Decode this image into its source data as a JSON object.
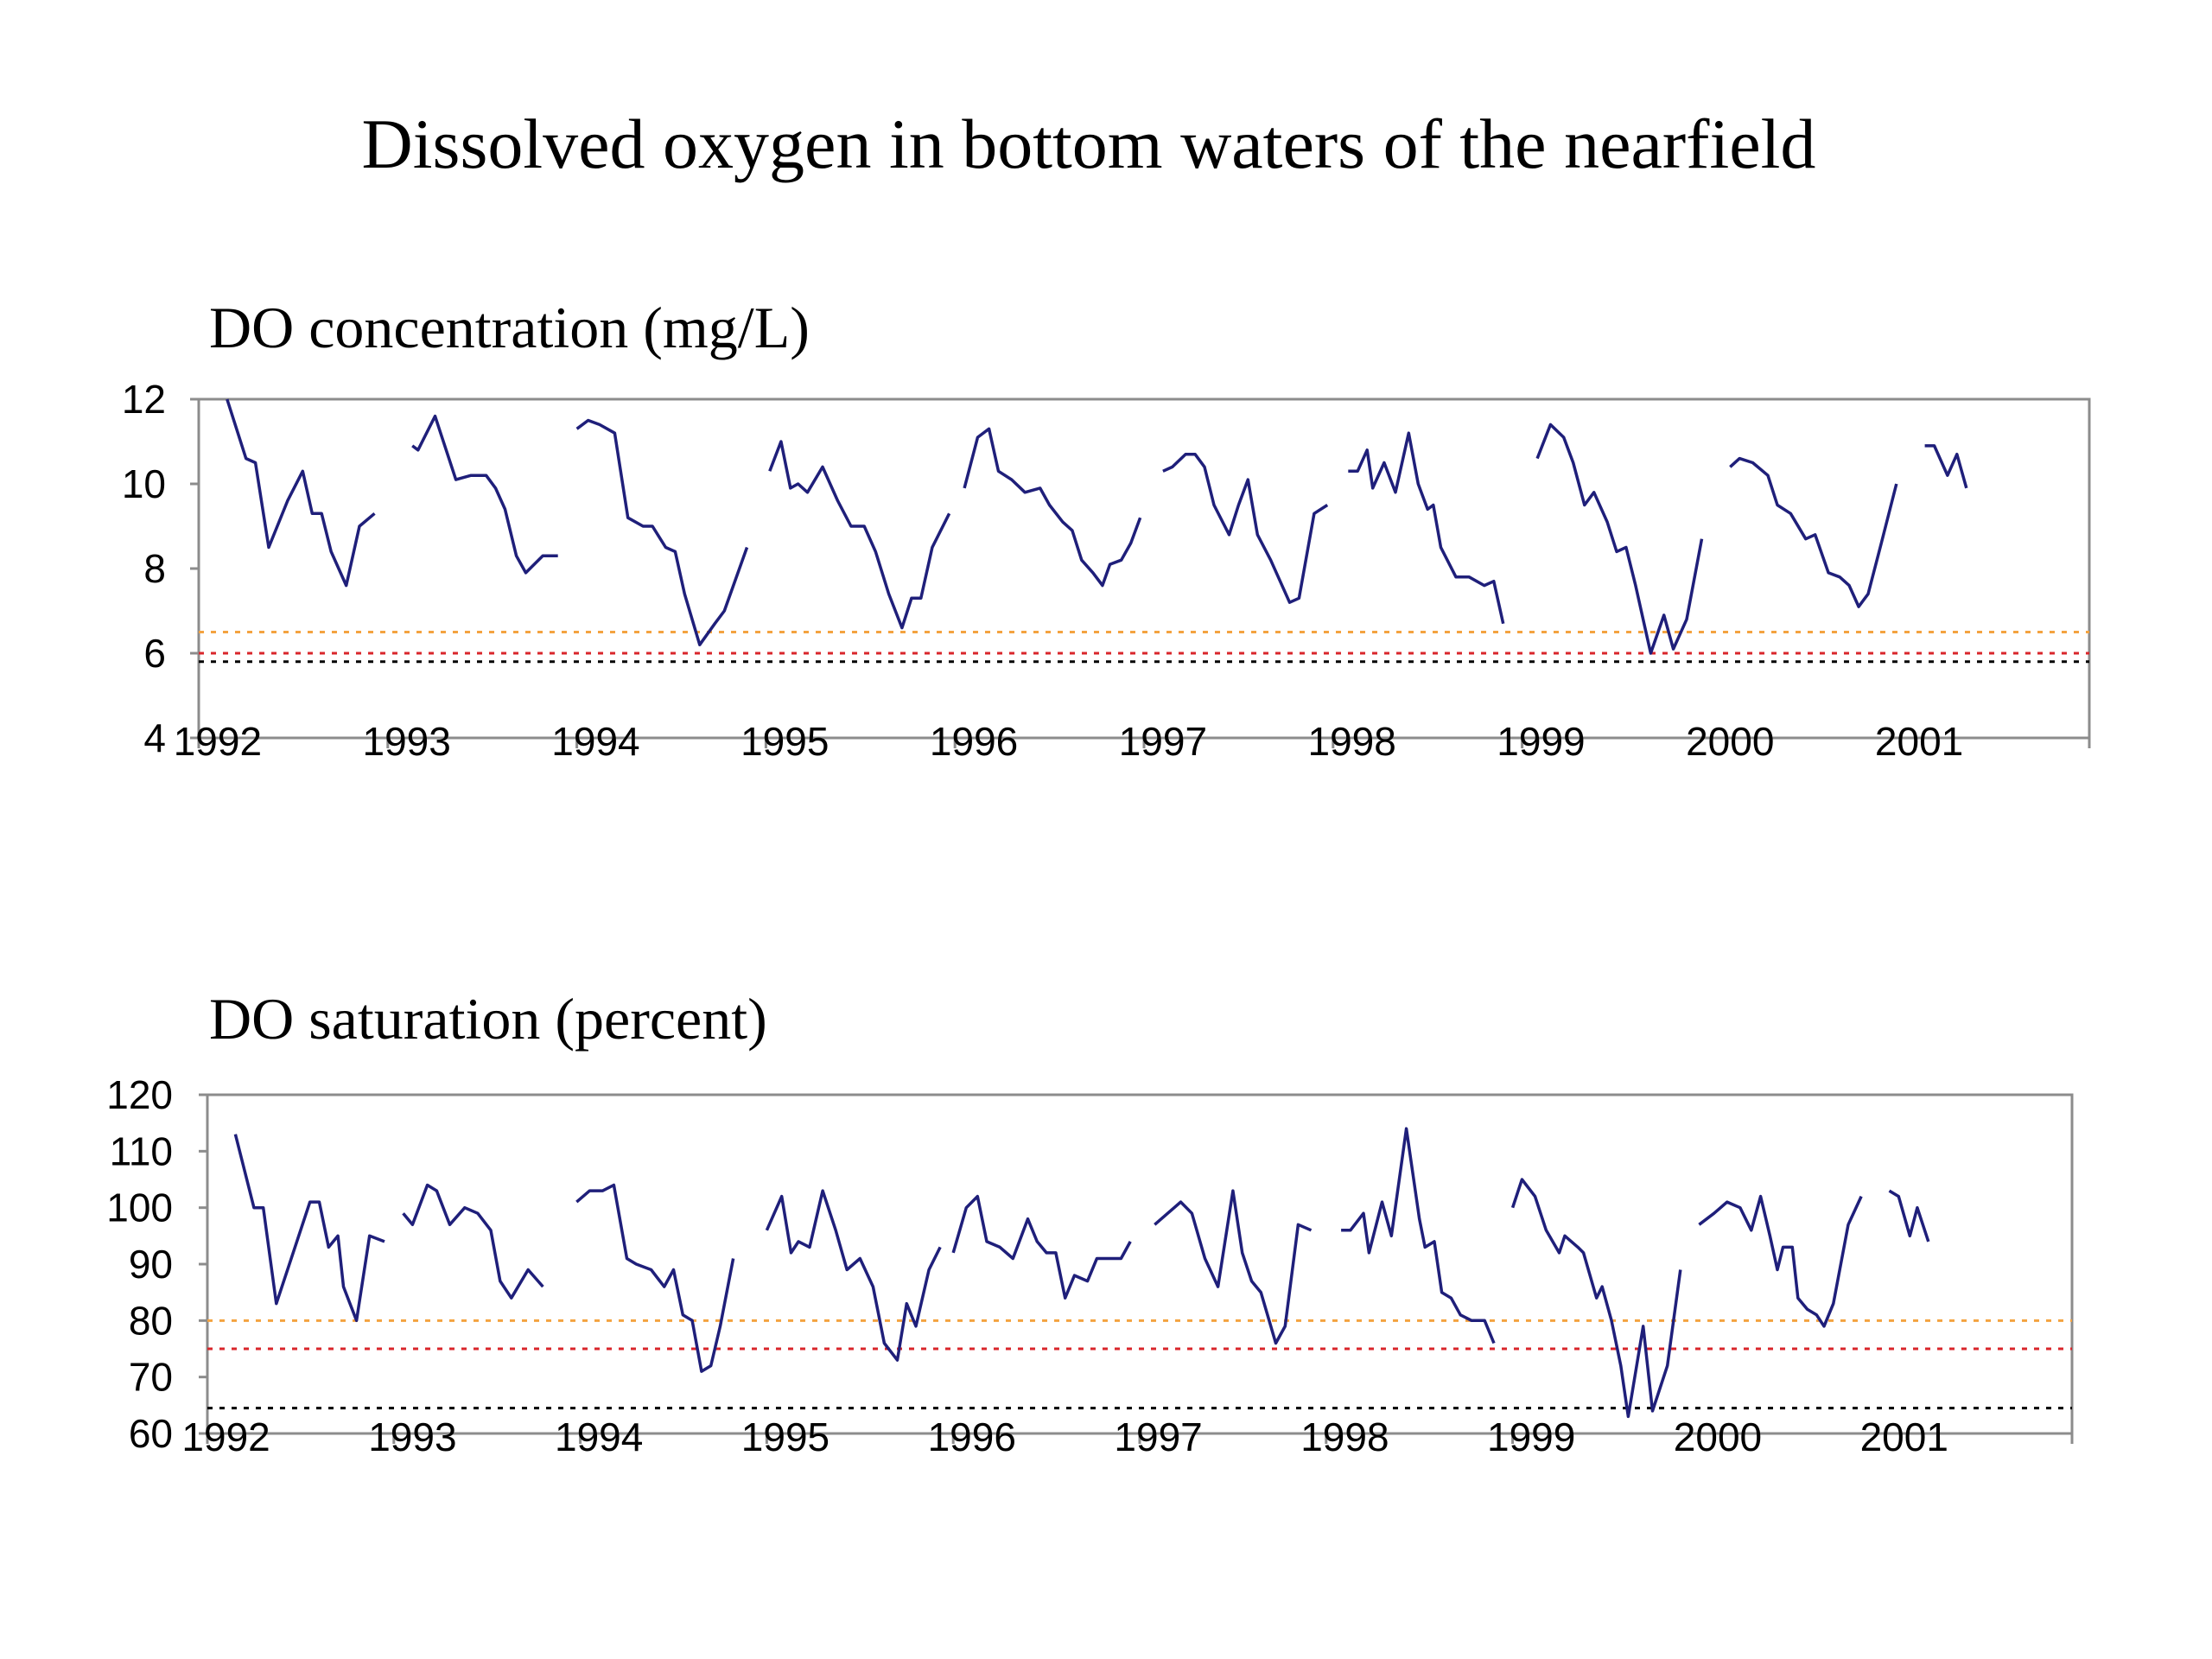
{
  "title": "Dissolved oxygen in bottom waters of the nearfield",
  "colors": {
    "series": "#1f1f7a",
    "threshold_orange": "#f4a340",
    "threshold_red": "#d9262b",
    "threshold_black": "#000000",
    "frame": "#8c8c8c"
  },
  "chart_data": [
    {
      "type": "line",
      "title": "DO concentration (mg/L)",
      "xlabel": "",
      "ylabel": "",
      "ylim": [
        4,
        12
      ],
      "yticks": [
        4,
        6,
        8,
        10,
        12
      ],
      "xlim": [
        1992.0,
        2002.0
      ],
      "xticks": [
        "1992",
        "1993",
        "1994",
        "1995",
        "1996",
        "1997",
        "1998",
        "1999",
        "2000",
        "2001"
      ],
      "grid": false,
      "thresholds": [
        {
          "value": 6.5,
          "color": "#f4a340"
        },
        {
          "value": 6.0,
          "color": "#d9262b"
        },
        {
          "value": 5.8,
          "color": "#000000"
        }
      ],
      "segments": [
        [
          [
            1992.15,
            12.0
          ],
          [
            1992.25,
            10.6
          ],
          [
            1992.3,
            10.5
          ],
          [
            1992.37,
            8.5
          ],
          [
            1992.47,
            9.6
          ],
          [
            1992.55,
            10.3
          ],
          [
            1992.6,
            9.3
          ],
          [
            1992.65,
            9.3
          ],
          [
            1992.7,
            8.4
          ],
          [
            1992.78,
            7.6
          ],
          [
            1992.85,
            9.0
          ],
          [
            1992.93,
            9.3
          ]
        ],
        [
          [
            1993.13,
            10.9
          ],
          [
            1993.16,
            10.8
          ],
          [
            1993.25,
            11.6
          ],
          [
            1993.36,
            10.1
          ],
          [
            1993.44,
            10.2
          ],
          [
            1993.52,
            10.2
          ],
          [
            1993.57,
            9.9
          ],
          [
            1993.62,
            9.4
          ],
          [
            1993.68,
            8.3
          ],
          [
            1993.73,
            7.9
          ],
          [
            1993.82,
            8.3
          ],
          [
            1993.9,
            8.3
          ]
        ],
        [
          [
            1994.0,
            11.3
          ],
          [
            1994.06,
            11.5
          ],
          [
            1994.12,
            11.4
          ],
          [
            1994.2,
            11.2
          ],
          [
            1994.27,
            9.2
          ],
          [
            1994.35,
            9.0
          ],
          [
            1994.4,
            9.0
          ],
          [
            1994.47,
            8.5
          ],
          [
            1994.52,
            8.4
          ],
          [
            1994.57,
            7.4
          ],
          [
            1994.65,
            6.2
          ],
          [
            1994.73,
            6.7
          ],
          [
            1994.78,
            7.0
          ],
          [
            1994.9,
            8.5
          ]
        ],
        [
          [
            1995.02,
            10.3
          ],
          [
            1995.08,
            11.0
          ],
          [
            1995.13,
            9.9
          ],
          [
            1995.17,
            10.0
          ],
          [
            1995.22,
            9.8
          ],
          [
            1995.3,
            10.4
          ],
          [
            1995.38,
            9.6
          ],
          [
            1995.45,
            9.0
          ],
          [
            1995.52,
            9.0
          ],
          [
            1995.58,
            8.4
          ],
          [
            1995.65,
            7.4
          ],
          [
            1995.72,
            6.6
          ],
          [
            1995.77,
            7.3
          ],
          [
            1995.82,
            7.3
          ],
          [
            1995.88,
            8.5
          ],
          [
            1995.97,
            9.3
          ]
        ],
        [
          [
            1996.05,
            9.9
          ],
          [
            1996.12,
            11.1
          ],
          [
            1996.18,
            11.3
          ],
          [
            1996.23,
            10.3
          ],
          [
            1996.3,
            10.1
          ],
          [
            1996.37,
            9.8
          ],
          [
            1996.45,
            9.9
          ],
          [
            1996.5,
            9.5
          ],
          [
            1996.57,
            9.1
          ],
          [
            1996.62,
            8.9
          ],
          [
            1996.67,
            8.2
          ],
          [
            1996.73,
            7.9
          ],
          [
            1996.78,
            7.6
          ],
          [
            1996.82,
            8.1
          ],
          [
            1996.88,
            8.2
          ],
          [
            1996.93,
            8.6
          ],
          [
            1996.98,
            9.2
          ]
        ],
        [
          [
            1997.1,
            10.3
          ],
          [
            1997.15,
            10.4
          ],
          [
            1997.22,
            10.7
          ],
          [
            1997.27,
            10.7
          ],
          [
            1997.32,
            10.4
          ],
          [
            1997.37,
            9.5
          ],
          [
            1997.45,
            8.8
          ],
          [
            1997.5,
            9.5
          ],
          [
            1997.55,
            10.1
          ],
          [
            1997.6,
            8.8
          ],
          [
            1997.67,
            8.2
          ],
          [
            1997.77,
            7.2
          ],
          [
            1997.82,
            7.3
          ],
          [
            1997.9,
            9.3
          ],
          [
            1997.97,
            9.5
          ]
        ],
        [
          [
            1998.08,
            10.3
          ],
          [
            1998.13,
            10.3
          ],
          [
            1998.18,
            10.8
          ],
          [
            1998.21,
            9.9
          ],
          [
            1998.27,
            10.5
          ],
          [
            1998.33,
            9.8
          ],
          [
            1998.4,
            11.2
          ],
          [
            1998.45,
            10.0
          ],
          [
            1998.5,
            9.4
          ],
          [
            1998.53,
            9.5
          ],
          [
            1998.57,
            8.5
          ],
          [
            1998.65,
            7.8
          ],
          [
            1998.72,
            7.8
          ],
          [
            1998.8,
            7.6
          ],
          [
            1998.85,
            7.7
          ],
          [
            1998.9,
            6.7
          ]
        ],
        [
          [
            1999.08,
            10.6
          ],
          [
            1999.15,
            11.4
          ],
          [
            1999.22,
            11.1
          ],
          [
            1999.27,
            10.5
          ],
          [
            1999.33,
            9.5
          ],
          [
            1999.38,
            9.8
          ],
          [
            1999.45,
            9.1
          ],
          [
            1999.5,
            8.4
          ],
          [
            1999.55,
            8.5
          ],
          [
            1999.6,
            7.6
          ],
          [
            1999.68,
            6.0
          ],
          [
            1999.75,
            6.9
          ],
          [
            1999.8,
            6.1
          ],
          [
            1999.87,
            6.8
          ],
          [
            1999.95,
            8.7
          ]
        ],
        [
          [
            2000.1,
            10.4
          ],
          [
            2000.15,
            10.6
          ],
          [
            2000.22,
            10.5
          ],
          [
            2000.3,
            10.2
          ],
          [
            2000.35,
            9.5
          ],
          [
            2000.42,
            9.3
          ],
          [
            2000.5,
            8.7
          ],
          [
            2000.55,
            8.8
          ],
          [
            2000.62,
            7.9
          ],
          [
            2000.68,
            7.8
          ],
          [
            2000.73,
            7.6
          ],
          [
            2000.78,
            7.1
          ],
          [
            2000.83,
            7.4
          ],
          [
            2000.9,
            8.6
          ],
          [
            2000.98,
            10.0
          ]
        ],
        [
          [
            2001.13,
            10.9
          ],
          [
            2001.18,
            10.9
          ],
          [
            2001.25,
            10.2
          ],
          [
            2001.3,
            10.7
          ],
          [
            2001.35,
            9.9
          ]
        ]
      ]
    },
    {
      "type": "line",
      "title": "DO saturation (percent)",
      "xlabel": "",
      "ylabel": "",
      "ylim": [
        60,
        120
      ],
      "yticks": [
        60,
        70,
        80,
        90,
        100,
        110,
        120
      ],
      "xlim": [
        1992.0,
        2002.0
      ],
      "xticks": [
        "1992",
        "1993",
        "1994",
        "1995",
        "1996",
        "1997",
        "1998",
        "1999",
        "2000",
        "2001"
      ],
      "grid": false,
      "thresholds": [
        {
          "value": 80,
          "color": "#f4a340"
        },
        {
          "value": 75,
          "color": "#d9262b"
        },
        {
          "value": 64.5,
          "color": "#000000"
        }
      ],
      "segments": [
        [
          [
            1992.15,
            113
          ],
          [
            1992.25,
            100
          ],
          [
            1992.3,
            100
          ],
          [
            1992.37,
            83
          ],
          [
            1992.47,
            93
          ],
          [
            1992.55,
            101
          ],
          [
            1992.6,
            101
          ],
          [
            1992.65,
            93
          ],
          [
            1992.7,
            95
          ],
          [
            1992.73,
            86
          ],
          [
            1992.8,
            80
          ],
          [
            1992.87,
            95
          ],
          [
            1992.95,
            94
          ]
        ],
        [
          [
            1993.05,
            99
          ],
          [
            1993.1,
            97
          ],
          [
            1993.18,
            104
          ],
          [
            1993.23,
            103
          ],
          [
            1993.3,
            97
          ],
          [
            1993.38,
            100
          ],
          [
            1993.45,
            99
          ],
          [
            1993.52,
            96
          ],
          [
            1993.57,
            87
          ],
          [
            1993.63,
            84
          ],
          [
            1993.72,
            89
          ],
          [
            1993.8,
            86
          ]
        ],
        [
          [
            1993.98,
            101
          ],
          [
            1994.05,
            103
          ],
          [
            1994.12,
            103
          ],
          [
            1994.18,
            104
          ],
          [
            1994.25,
            91
          ],
          [
            1994.3,
            90
          ],
          [
            1994.38,
            89
          ],
          [
            1994.45,
            86
          ],
          [
            1994.5,
            89
          ],
          [
            1994.55,
            81
          ],
          [
            1994.6,
            80
          ],
          [
            1994.65,
            71
          ],
          [
            1994.7,
            72
          ],
          [
            1994.75,
            79
          ],
          [
            1994.82,
            91
          ]
        ],
        [
          [
            1995.0,
            96
          ],
          [
            1995.08,
            102
          ],
          [
            1995.13,
            92
          ],
          [
            1995.17,
            94
          ],
          [
            1995.23,
            93
          ],
          [
            1995.3,
            103
          ],
          [
            1995.37,
            96
          ],
          [
            1995.43,
            89
          ],
          [
            1995.5,
            91
          ],
          [
            1995.57,
            86
          ],
          [
            1995.63,
            76
          ],
          [
            1995.7,
            73
          ],
          [
            1995.75,
            83
          ],
          [
            1995.8,
            79
          ],
          [
            1995.87,
            89
          ],
          [
            1995.93,
            93
          ]
        ],
        [
          [
            1996.0,
            92
          ],
          [
            1996.07,
            100
          ],
          [
            1996.13,
            102
          ],
          [
            1996.18,
            94
          ],
          [
            1996.25,
            93
          ],
          [
            1996.32,
            91
          ],
          [
            1996.4,
            98
          ],
          [
            1996.45,
            94
          ],
          [
            1996.5,
            92
          ],
          [
            1996.55,
            92
          ],
          [
            1996.6,
            84
          ],
          [
            1996.65,
            88
          ],
          [
            1996.72,
            87
          ],
          [
            1996.77,
            91
          ],
          [
            1996.85,
            91
          ],
          [
            1996.9,
            91
          ],
          [
            1996.95,
            94
          ]
        ],
        [
          [
            1997.08,
            97
          ],
          [
            1997.15,
            99
          ],
          [
            1997.22,
            101
          ],
          [
            1997.28,
            99
          ],
          [
            1997.35,
            91
          ],
          [
            1997.42,
            86
          ],
          [
            1997.5,
            103
          ],
          [
            1997.55,
            92
          ],
          [
            1997.6,
            87
          ],
          [
            1997.65,
            85
          ],
          [
            1997.73,
            76
          ],
          [
            1997.78,
            79
          ],
          [
            1997.85,
            97
          ],
          [
            1997.92,
            96
          ]
        ],
        [
          [
            1998.08,
            96
          ],
          [
            1998.13,
            96
          ],
          [
            1998.2,
            99
          ],
          [
            1998.23,
            92
          ],
          [
            1998.3,
            101
          ],
          [
            1998.35,
            95
          ],
          [
            1998.43,
            114
          ],
          [
            1998.5,
            98
          ],
          [
            1998.53,
            93
          ],
          [
            1998.58,
            94
          ],
          [
            1998.62,
            85
          ],
          [
            1998.67,
            84
          ],
          [
            1998.72,
            81
          ],
          [
            1998.78,
            80
          ],
          [
            1998.85,
            80
          ],
          [
            1998.9,
            76
          ]
        ],
        [
          [
            1999.0,
            100
          ],
          [
            1999.05,
            105
          ],
          [
            1999.12,
            102
          ],
          [
            1999.18,
            96
          ],
          [
            1999.25,
            92
          ],
          [
            1999.28,
            95
          ],
          [
            1999.35,
            93
          ],
          [
            1999.38,
            92
          ],
          [
            1999.45,
            84
          ],
          [
            1999.48,
            86
          ],
          [
            1999.53,
            80
          ],
          [
            1999.58,
            72
          ],
          [
            1999.62,
            63
          ],
          [
            1999.7,
            79
          ],
          [
            1999.75,
            64
          ],
          [
            1999.83,
            72
          ],
          [
            1999.9,
            89
          ]
        ],
        [
          [
            2000.0,
            97
          ],
          [
            2000.08,
            99
          ],
          [
            2000.15,
            101
          ],
          [
            2000.22,
            100
          ],
          [
            2000.28,
            96
          ],
          [
            2000.33,
            102
          ],
          [
            2000.38,
            95
          ],
          [
            2000.42,
            89
          ],
          [
            2000.45,
            93
          ],
          [
            2000.5,
            93
          ],
          [
            2000.53,
            84
          ],
          [
            2000.58,
            82
          ],
          [
            2000.63,
            81
          ],
          [
            2000.67,
            79
          ],
          [
            2000.72,
            83
          ],
          [
            2000.8,
            97
          ],
          [
            2000.87,
            102
          ]
        ],
        [
          [
            2001.02,
            103
          ],
          [
            2001.07,
            102
          ],
          [
            2001.13,
            95
          ],
          [
            2001.17,
            100
          ],
          [
            2001.23,
            94
          ]
        ]
      ]
    }
  ]
}
